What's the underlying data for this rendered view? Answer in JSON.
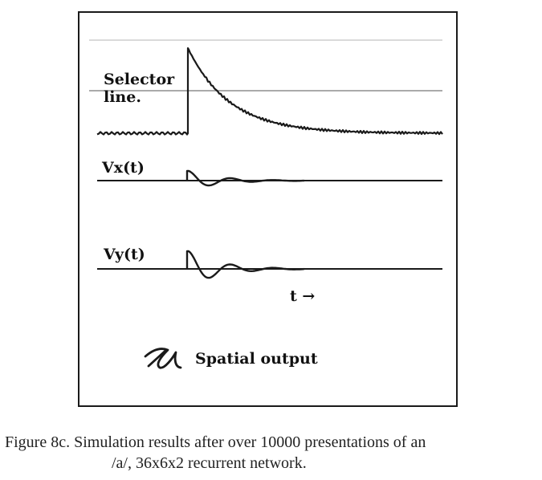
{
  "figure": {
    "labels": {
      "selector_line1": "Selector",
      "selector_line2": "line.",
      "vx": "Vx(t)",
      "vy": "Vy(t)",
      "time_axis": "t →",
      "spatial_output": "Spatial output"
    },
    "stroke_color": "#1a1a1a"
  },
  "caption": {
    "line1": "Figure 8c. Simulation results after over 10000 presentations of an",
    "line2": "/a/, 36x6x2 recurrent network."
  }
}
